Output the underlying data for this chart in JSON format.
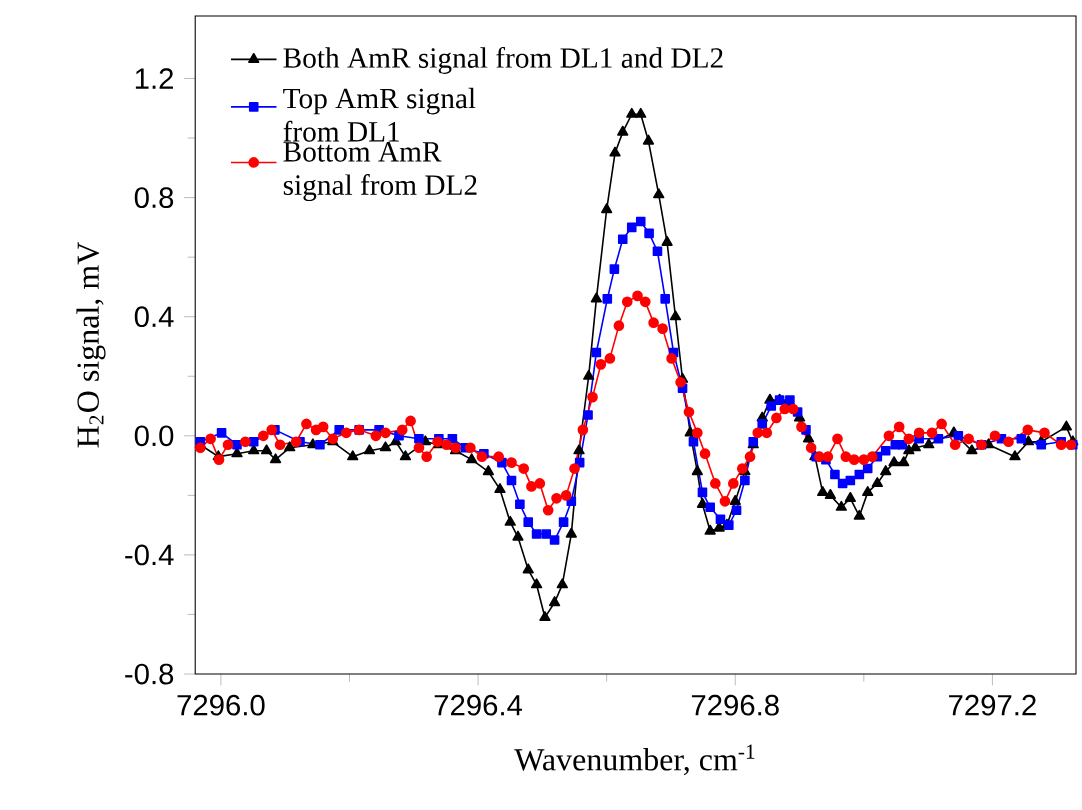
{
  "chart_data": {
    "type": "line",
    "xlabel": "Wavenumber, cm$^{-1}$",
    "ylabel": "H$_{2}$O signal, mV",
    "xlim": [
      7295.96,
      7297.33
    ],
    "ylim": [
      -0.8,
      1.41
    ],
    "xticks": [
      {
        "value": 7296.0,
        "label": "7296.0"
      },
      {
        "value": 7296.4,
        "label": "7296.4"
      },
      {
        "value": 7296.8,
        "label": "7296.8"
      },
      {
        "value": 7297.2,
        "label": "7297.2"
      }
    ],
    "yticks": [
      {
        "value": -0.8,
        "label": "-0.8"
      },
      {
        "value": -0.4,
        "label": "-0.4"
      },
      {
        "value": 0.0,
        "label": "0.0"
      },
      {
        "value": 0.4,
        "label": "0.4"
      },
      {
        "value": 0.8,
        "label": "0.8"
      },
      {
        "value": 1.2,
        "label": "1.2"
      }
    ],
    "legend": "top left",
    "line_style": "solid",
    "series": [
      {
        "name": "Both AmR signal from DL1 and DL2",
        "color": "#000000",
        "marker": "triangle",
        "x": [
          7295.968,
          7295.996,
          7296.025,
          7296.051,
          7296.071,
          7296.085,
          7296.107,
          7296.143,
          7296.174,
          7296.205,
          7296.231,
          7296.256,
          7296.272,
          7296.287,
          7296.318,
          7296.339,
          7296.365,
          7296.39,
          7296.416,
          7296.434,
          7296.45,
          7296.462,
          7296.478,
          7296.491,
          7296.504,
          7296.519,
          7296.531,
          7296.545,
          7296.557,
          7296.572,
          7296.584,
          7296.6,
          7296.613,
          7296.625,
          7296.639,
          7296.653,
          7296.665,
          7296.681,
          7296.694,
          7296.707,
          7296.718,
          7296.73,
          7296.741,
          7296.749,
          7296.761,
          7296.775,
          7296.787,
          7296.8,
          7296.815,
          7296.828,
          7296.842,
          7296.854,
          7296.869,
          7296.885,
          7296.9,
          7296.914,
          7296.924,
          7296.936,
          7296.948,
          7296.965,
          7296.979,
          7296.993,
          7297.006,
          7297.021,
          7297.034,
          7297.047,
          7297.062,
          7297.07,
          7297.08,
          7297.101,
          7297.14,
          7297.168,
          7297.194,
          7297.235,
          7297.256,
          7297.276,
          7297.315,
          7297.325
        ],
        "values": [
          -0.03,
          -0.07,
          -0.06,
          -0.05,
          -0.05,
          -0.08,
          -0.04,
          -0.03,
          -0.02,
          -0.07,
          -0.05,
          -0.04,
          -0.02,
          -0.07,
          -0.02,
          -0.03,
          -0.05,
          -0.08,
          -0.12,
          -0.18,
          -0.29,
          -0.34,
          -0.45,
          -0.5,
          -0.61,
          -0.56,
          -0.5,
          -0.33,
          -0.05,
          0.2,
          0.46,
          0.76,
          0.95,
          1.02,
          1.08,
          1.08,
          0.99,
          0.81,
          0.65,
          0.4,
          0.19,
          0.01,
          -0.12,
          -0.23,
          -0.32,
          -0.31,
          -0.3,
          -0.22,
          -0.12,
          -0.03,
          0.06,
          0.12,
          0.12,
          0.11,
          0.06,
          -0.01,
          -0.07,
          -0.19,
          -0.2,
          -0.24,
          -0.21,
          -0.27,
          -0.19,
          -0.16,
          -0.12,
          -0.09,
          -0.09,
          -0.05,
          -0.04,
          -0.03,
          0.01,
          -0.05,
          -0.03,
          -0.07,
          -0.02,
          -0.02,
          0.03,
          -0.02
        ]
      },
      {
        "name": "Top AmR signal from DL1",
        "color": "#0000ff",
        "marker": "square",
        "x": [
          7295.968,
          7296.001,
          7296.025,
          7296.051,
          7296.084,
          7296.123,
          7296.154,
          7296.184,
          7296.215,
          7296.246,
          7296.277,
          7296.308,
          7296.339,
          7296.36,
          7296.38,
          7296.409,
          7296.437,
          7296.452,
          7296.465,
          7296.478,
          7296.491,
          7296.506,
          7296.519,
          7296.533,
          7296.545,
          7296.558,
          7296.571,
          7296.584,
          7296.601,
          7296.612,
          7296.625,
          7296.639,
          7296.653,
          7296.666,
          7296.679,
          7296.691,
          7296.704,
          7296.718,
          7296.735,
          7296.749,
          7296.761,
          7296.777,
          7296.79,
          7296.802,
          7296.815,
          7296.828,
          7296.842,
          7296.856,
          7296.869,
          7296.885,
          7296.897,
          7296.91,
          7296.926,
          7296.941,
          7296.955,
          7296.967,
          7296.979,
          7296.993,
          7297.006,
          7297.021,
          7297.034,
          7297.049,
          7297.06,
          7297.086,
          7297.116,
          7297.147,
          7297.183,
          7297.214,
          7297.245,
          7297.276,
          7297.307,
          7297.325
        ],
        "values": [
          -0.02,
          0.01,
          -0.03,
          -0.02,
          0.02,
          -0.02,
          -0.03,
          0.02,
          0.02,
          0.02,
          0.0,
          -0.01,
          -0.01,
          -0.01,
          -0.04,
          -0.06,
          -0.09,
          -0.15,
          -0.23,
          -0.29,
          -0.33,
          -0.33,
          -0.35,
          -0.29,
          -0.22,
          -0.09,
          0.07,
          0.28,
          0.46,
          0.56,
          0.66,
          0.7,
          0.72,
          0.68,
          0.62,
          0.46,
          0.28,
          0.16,
          -0.02,
          -0.19,
          -0.24,
          -0.28,
          -0.3,
          -0.25,
          -0.15,
          -0.02,
          0.04,
          0.1,
          0.12,
          0.12,
          0.08,
          0.02,
          -0.07,
          -0.08,
          -0.13,
          -0.16,
          -0.15,
          -0.13,
          -0.11,
          -0.07,
          -0.05,
          -0.03,
          -0.03,
          -0.01,
          -0.01,
          0.0,
          -0.03,
          -0.01,
          -0.01,
          -0.03,
          -0.02,
          -0.03
        ]
      },
      {
        "name": "Bottom AmR signal from DL2",
        "color": "#ff0000",
        "marker": "circle",
        "x": [
          7295.968,
          7295.984,
          7295.997,
          7296.011,
          7296.038,
          7296.066,
          7296.079,
          7296.092,
          7296.117,
          7296.133,
          7296.148,
          7296.159,
          7296.174,
          7296.195,
          7296.215,
          7296.241,
          7296.256,
          7296.282,
          7296.295,
          7296.308,
          7296.32,
          7296.337,
          7296.351,
          7296.365,
          7296.388,
          7296.406,
          7296.432,
          7296.452,
          7296.471,
          7296.483,
          7296.496,
          7296.509,
          7296.522,
          7296.537,
          7296.55,
          7296.563,
          7296.578,
          7296.591,
          7296.605,
          7296.619,
          7296.632,
          7296.648,
          7296.66,
          7296.673,
          7296.687,
          7296.701,
          7296.715,
          7296.728,
          7296.741,
          7296.753,
          7296.769,
          7296.784,
          7296.797,
          7296.811,
          7296.823,
          7296.835,
          7296.849,
          7296.864,
          7296.877,
          7296.89,
          7296.903,
          7296.918,
          7296.931,
          7296.944,
          7296.959,
          7296.972,
          7296.985,
          7297.0,
          7297.013,
          7297.039,
          7297.055,
          7297.07,
          7297.086,
          7297.106,
          7297.121,
          7297.142,
          7297.163,
          7297.183,
          7297.204,
          7297.225,
          7297.255,
          7297.281,
          7297.307,
          7297.322
        ],
        "values": [
          -0.04,
          -0.01,
          -0.08,
          -0.03,
          -0.02,
          0.0,
          0.02,
          -0.03,
          -0.02,
          0.04,
          0.02,
          0.03,
          -0.01,
          0.01,
          0.02,
          0.0,
          0.01,
          0.02,
          0.05,
          -0.04,
          -0.07,
          -0.02,
          -0.03,
          -0.04,
          -0.04,
          -0.07,
          -0.07,
          -0.09,
          -0.11,
          -0.17,
          -0.16,
          -0.25,
          -0.21,
          -0.2,
          -0.11,
          0.02,
          0.13,
          0.24,
          0.26,
          0.37,
          0.45,
          0.47,
          0.45,
          0.38,
          0.36,
          0.26,
          0.18,
          0.08,
          0.01,
          -0.06,
          -0.16,
          -0.22,
          -0.16,
          -0.11,
          -0.07,
          0.01,
          0.01,
          0.06,
          0.09,
          0.09,
          0.03,
          -0.04,
          -0.07,
          -0.07,
          -0.01,
          -0.07,
          -0.08,
          -0.08,
          -0.07,
          0.0,
          0.03,
          -0.01,
          0.01,
          0.01,
          0.04,
          -0.03,
          -0.01,
          -0.03,
          0.0,
          -0.02,
          0.02,
          0.01,
          -0.03,
          -0.03
        ]
      }
    ]
  }
}
